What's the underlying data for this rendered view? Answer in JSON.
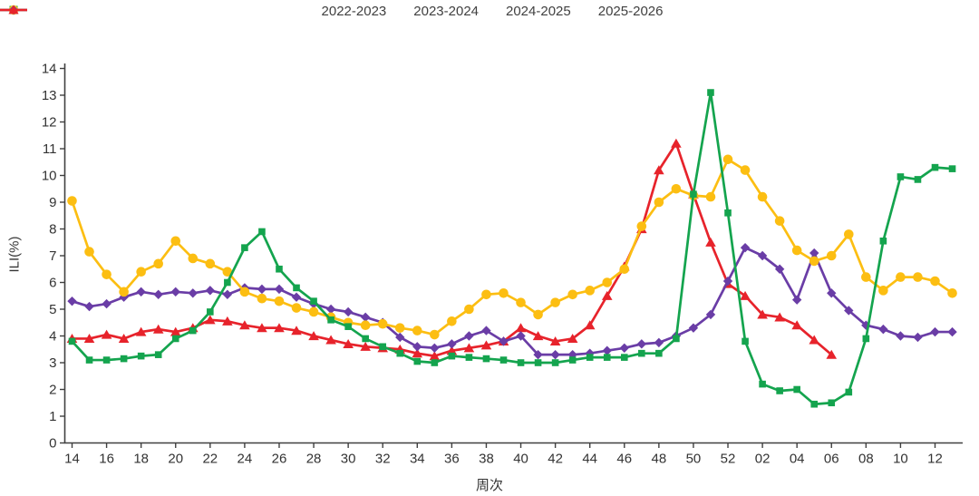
{
  "page": {
    "background": "#ffffff",
    "text_color": "#333333",
    "axis_color": "#404040"
  },
  "chart_data": {
    "type": "line",
    "title": "",
    "x_label": "周次",
    "y_label": "ILI(%)",
    "ylim": [
      0,
      14
    ],
    "y_ticks": [
      0,
      1,
      2,
      3,
      4,
      5,
      6,
      7,
      8,
      9,
      10,
      11,
      12,
      13,
      14
    ],
    "grid": false,
    "legend_position": "top-center",
    "x_categories": [
      "14",
      "15",
      "16",
      "17",
      "18",
      "19",
      "20",
      "21",
      "22",
      "23",
      "24",
      "25",
      "26",
      "27",
      "28",
      "29",
      "30",
      "31",
      "32",
      "33",
      "34",
      "35",
      "36",
      "37",
      "38",
      "39",
      "40",
      "41",
      "42",
      "43",
      "44",
      "45",
      "46",
      "47",
      "48",
      "49",
      "50",
      "51",
      "52",
      "01",
      "02",
      "03",
      "04",
      "05",
      "06",
      "07",
      "08",
      "09",
      "10",
      "11",
      "12",
      "13"
    ],
    "x_tick_labels": [
      "14",
      "16",
      "18",
      "20",
      "22",
      "24",
      "26",
      "28",
      "30",
      "32",
      "34",
      "36",
      "38",
      "40",
      "42",
      "44",
      "46",
      "48",
      "50",
      "52",
      "02",
      "04",
      "06",
      "08",
      "10",
      "12"
    ],
    "series": [
      {
        "name": "2022-2023",
        "color": "#14a44e",
        "marker": "square",
        "values": [
          3.8,
          3.1,
          3.1,
          3.15,
          3.25,
          3.3,
          3.9,
          4.2,
          4.9,
          6.0,
          7.3,
          7.9,
          6.5,
          5.8,
          5.3,
          4.6,
          4.35,
          3.9,
          3.6,
          3.35,
          3.05,
          3.0,
          3.25,
          3.2,
          3.15,
          3.1,
          3.0,
          3.0,
          3.0,
          3.1,
          3.2,
          3.2,
          3.2,
          3.35,
          3.35,
          3.9,
          9.3,
          13.1,
          8.6,
          3.8,
          2.2,
          1.95,
          2.0,
          1.45,
          1.5,
          1.9,
          3.9,
          7.55,
          9.95,
          9.85,
          10.3,
          10.25
        ]
      },
      {
        "name": "2023-2024",
        "color": "#fcbe12",
        "marker": "circle",
        "values": [
          9.05,
          7.15,
          6.3,
          5.65,
          6.4,
          6.7,
          7.55,
          6.9,
          6.7,
          6.4,
          5.65,
          5.4,
          5.3,
          5.05,
          4.9,
          4.7,
          4.5,
          4.4,
          4.45,
          4.3,
          4.2,
          4.05,
          4.55,
          5.0,
          5.55,
          5.6,
          5.25,
          4.8,
          5.25,
          5.55,
          5.7,
          6.0,
          6.5,
          8.1,
          9.0,
          9.5,
          9.25,
          9.2,
          10.6,
          10.2,
          9.2,
          8.3,
          7.2,
          6.8,
          7.0,
          7.8,
          6.2,
          5.7,
          6.2,
          6.2,
          6.05,
          5.6
        ]
      },
      {
        "name": "2024-2025",
        "color": "#6a3da6",
        "marker": "diamond",
        "values": [
          5.3,
          5.1,
          5.2,
          5.45,
          5.65,
          5.55,
          5.65,
          5.6,
          5.7,
          5.55,
          5.8,
          5.75,
          5.75,
          5.45,
          5.2,
          5.0,
          4.9,
          4.7,
          4.5,
          3.95,
          3.6,
          3.55,
          3.7,
          4.0,
          4.2,
          3.8,
          4.0,
          3.3,
          3.3,
          3.3,
          3.35,
          3.45,
          3.55,
          3.7,
          3.75,
          4.0,
          4.3,
          4.8,
          6.05,
          7.3,
          7.0,
          6.5,
          5.35,
          7.1,
          5.6,
          4.95,
          4.4,
          4.25,
          4.0,
          3.95,
          4.15,
          4.15
        ]
      },
      {
        "name": "2025-2026",
        "color": "#e7232b",
        "marker": "triangle",
        "values": [
          3.9,
          3.9,
          4.05,
          3.9,
          4.15,
          4.25,
          4.15,
          4.3,
          4.6,
          4.55,
          4.4,
          4.3,
          4.3,
          4.2,
          4.0,
          3.85,
          3.7,
          3.6,
          3.55,
          3.5,
          3.35,
          3.25,
          3.45,
          3.55,
          3.65,
          3.8,
          4.3,
          4.0,
          3.8,
          3.9,
          4.4,
          5.5,
          6.6,
          8.0,
          10.2,
          11.2,
          9.3,
          7.5,
          5.95,
          5.5,
          4.8,
          4.7,
          4.4,
          3.85,
          3.3
        ]
      }
    ]
  }
}
